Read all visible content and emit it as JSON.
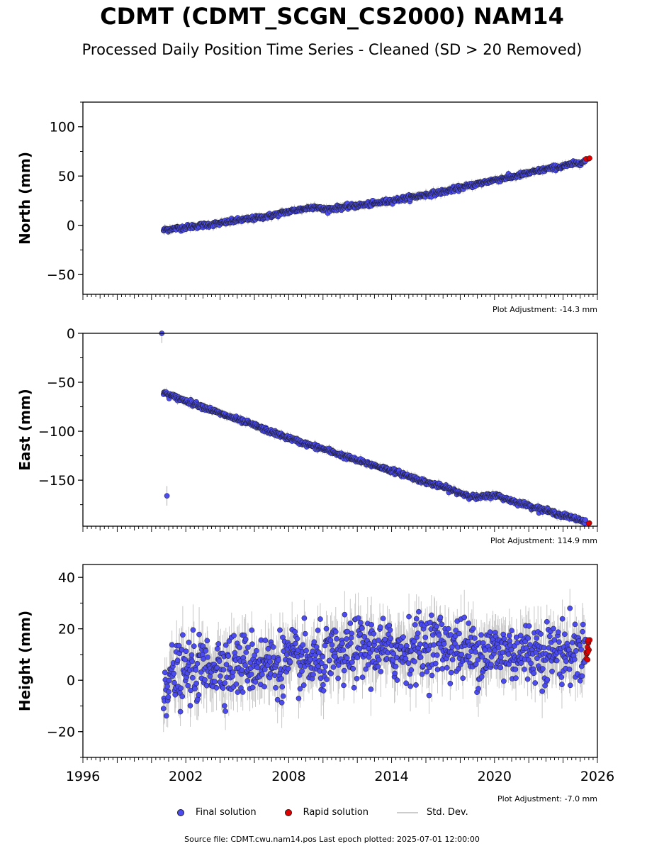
{
  "title": "CDMT (CDMT_SCGN_CS2000) NAM14",
  "subtitle": "Processed Daily Position Time Series - Cleaned (SD > 20 Removed)",
  "legend": {
    "final": "Final solution",
    "rapid": "Rapid solution",
    "std": "Std. Dev."
  },
  "footer": "Source file: CDMT.cwu.nam14.pos  Last epoch plotted: 2025-07-01 12:00:00",
  "colors": {
    "final": "#4b4bf0",
    "rapid": "#e00000",
    "std": "#c8c8c8",
    "edge": "#1a1a1a"
  },
  "chart_data": [
    {
      "type": "scatter",
      "ylabel": "North (mm)",
      "xlim": [
        1996,
        2026
      ],
      "ylim": [
        -70,
        125
      ],
      "yticks": [
        -50,
        0,
        50,
        100
      ],
      "adjustment": "Plot Adjustment: -14.3 mm",
      "series": [
        {
          "name": "Final solution",
          "x": [
            2000.7,
            2001,
            2002,
            2003,
            2004,
            2005,
            2006,
            2007,
            2008,
            2009,
            2009.5,
            2010,
            2011,
            2012,
            2013,
            2014,
            2015,
            2016,
            2017,
            2018,
            2019,
            2020,
            2021,
            2022,
            2023,
            2024,
            2025.3
          ],
          "y": [
            -5,
            -4,
            -2,
            0,
            2,
            5,
            7,
            10,
            14,
            17,
            19,
            16,
            18,
            20,
            22,
            25,
            28,
            31,
            34,
            38,
            42,
            46,
            49,
            53,
            57,
            60,
            65
          ]
        },
        {
          "name": "Rapid solution",
          "x": [
            2025.4,
            2025.5
          ],
          "y": [
            67,
            68
          ]
        }
      ]
    },
    {
      "type": "scatter",
      "ylabel": "East (mm)",
      "xlim": [
        1996,
        2026
      ],
      "ylim": [
        -197,
        0
      ],
      "yticks": [
        -150,
        -100,
        -50,
        0
      ],
      "adjustment": "Plot Adjustment: 114.9 mm",
      "series": [
        {
          "name": "Final solution",
          "x": [
            2000.7,
            2001,
            2002,
            2003,
            2004,
            2005,
            2006,
            2007,
            2008,
            2009,
            2010,
            2011,
            2012,
            2013,
            2014,
            2015,
            2016,
            2017,
            2018,
            2019,
            2020,
            2021,
            2022,
            2023,
            2024,
            2025.3
          ],
          "y": [
            -60,
            -63,
            -69,
            -75,
            -82,
            -88,
            -94,
            -101,
            -107,
            -113,
            -118,
            -124,
            -130,
            -135,
            -140,
            -146,
            -152,
            -157,
            -163,
            -168,
            -165,
            -171,
            -176,
            -181,
            -186,
            -192
          ]
        },
        {
          "name": "Rapid solution",
          "x": [
            2025.5
          ],
          "y": [
            -194
          ]
        }
      ],
      "outliers": {
        "x": [
          2000.6,
          2000.9
        ],
        "y": [
          0,
          -166
        ]
      }
    },
    {
      "type": "scatter",
      "ylabel": "Height (mm)",
      "xlim": [
        1996,
        2026
      ],
      "ylim": [
        -30,
        45
      ],
      "yticks": [
        -20,
        0,
        20,
        40
      ],
      "xticks": [
        1996,
        2002,
        2008,
        2014,
        2020,
        2026
      ],
      "adjustment": "Plot Adjustment: -7.0 mm",
      "series": [
        {
          "name": "Final solution",
          "x": [
            2000.7,
            2001,
            2002,
            2003,
            2004,
            2005,
            2006,
            2007,
            2008,
            2009,
            2010,
            2011,
            2012,
            2013,
            2014,
            2015,
            2016,
            2017,
            2018,
            2019,
            2020,
            2021,
            2022,
            2023,
            2024,
            2025.3
          ],
          "y": [
            -2,
            1,
            3,
            5,
            6,
            6,
            7,
            6,
            7,
            7,
            7,
            9,
            12,
            12,
            11,
            12,
            14,
            14,
            12,
            11,
            11,
            11,
            11,
            11,
            11,
            11
          ]
        },
        {
          "name": "Rapid solution",
          "x": [
            2025.4,
            2025.45,
            2025.5
          ],
          "y": [
            9,
            12,
            15
          ]
        }
      ],
      "scatter_sd": 6
    }
  ]
}
